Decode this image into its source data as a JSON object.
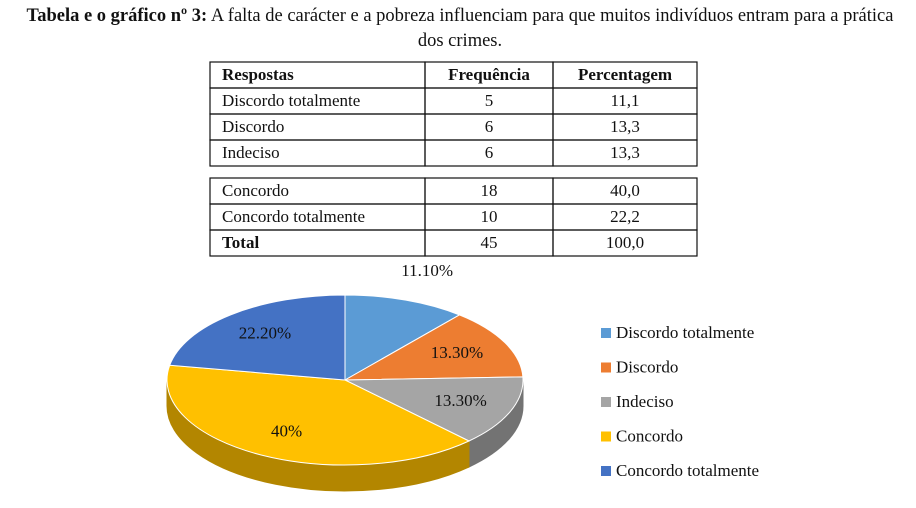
{
  "header": {
    "label": "Tabela e o gráfico nº 3:",
    "title": "A falta de carácter e a pobreza influenciam para que muitos indivíduos entram para a prática dos crimes."
  },
  "table": {
    "columns": [
      "Respostas",
      "Frequência",
      "Percentagem"
    ],
    "rows": [
      [
        "Discordo totalmente",
        "5",
        "11,1"
      ],
      [
        "Discordo",
        "6",
        "13,3"
      ],
      [
        "Indeciso",
        "6",
        "13,3"
      ],
      [
        "Concordo",
        "18",
        "40,0"
      ],
      [
        "Concordo totalmente",
        "10",
        "22,2"
      ],
      [
        "Total",
        "45",
        "100,0"
      ]
    ]
  },
  "chart_data": {
    "type": "pie",
    "categories": [
      "Discordo totalmente",
      "Discordo",
      "Indeciso",
      "Concordo",
      "Concordo totalmente"
    ],
    "values": [
      11.1,
      13.3,
      13.3,
      40,
      22.2
    ],
    "value_labels": [
      "11.10%",
      "13.30%",
      "13.30%",
      "40%",
      "22.20%"
    ],
    "colors": [
      "#5b9bd5",
      "#ed7d31",
      "#a5a5a5",
      "#ffc000",
      "#4472c4"
    ],
    "legend": "right"
  }
}
